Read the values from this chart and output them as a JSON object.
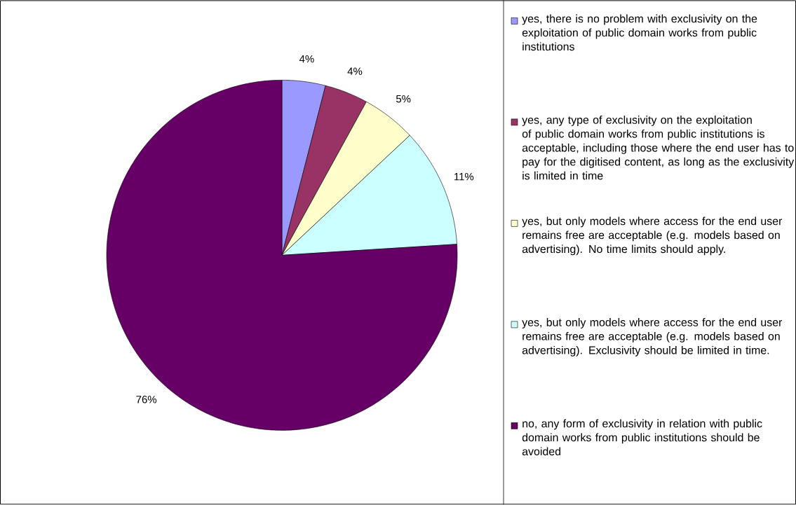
{
  "chart_data": {
    "type": "pie",
    "categories": [
      "yes, there is no problem with exclusivity on the exploitation of public domain works from public institutions",
      "yes, any type of exclusivity on the exploitation of public domain works from public institutions is acceptable, including those where the end user has to pay for the digitised content, as long as the exclusivity is limited in time",
      "yes, but only models where access for the end user remains free are acceptable (e.g. models based on advertising). No time limits should apply.",
      "yes, but only models where access for the end user remains free are acceptable (e.g. models based on advertising). Exclusivity should be limited in time.",
      "no, any form of exclusivity in relation with public domain works from public institutions should be avoided"
    ],
    "values": [
      4,
      4,
      5,
      11,
      76
    ],
    "value_labels": [
      "4%",
      "4%",
      "5%",
      "11%",
      "76%"
    ],
    "colors": [
      "#9999ff",
      "#993366",
      "#ffffcc",
      "#ccffff",
      "#660066"
    ],
    "legend": "right"
  }
}
